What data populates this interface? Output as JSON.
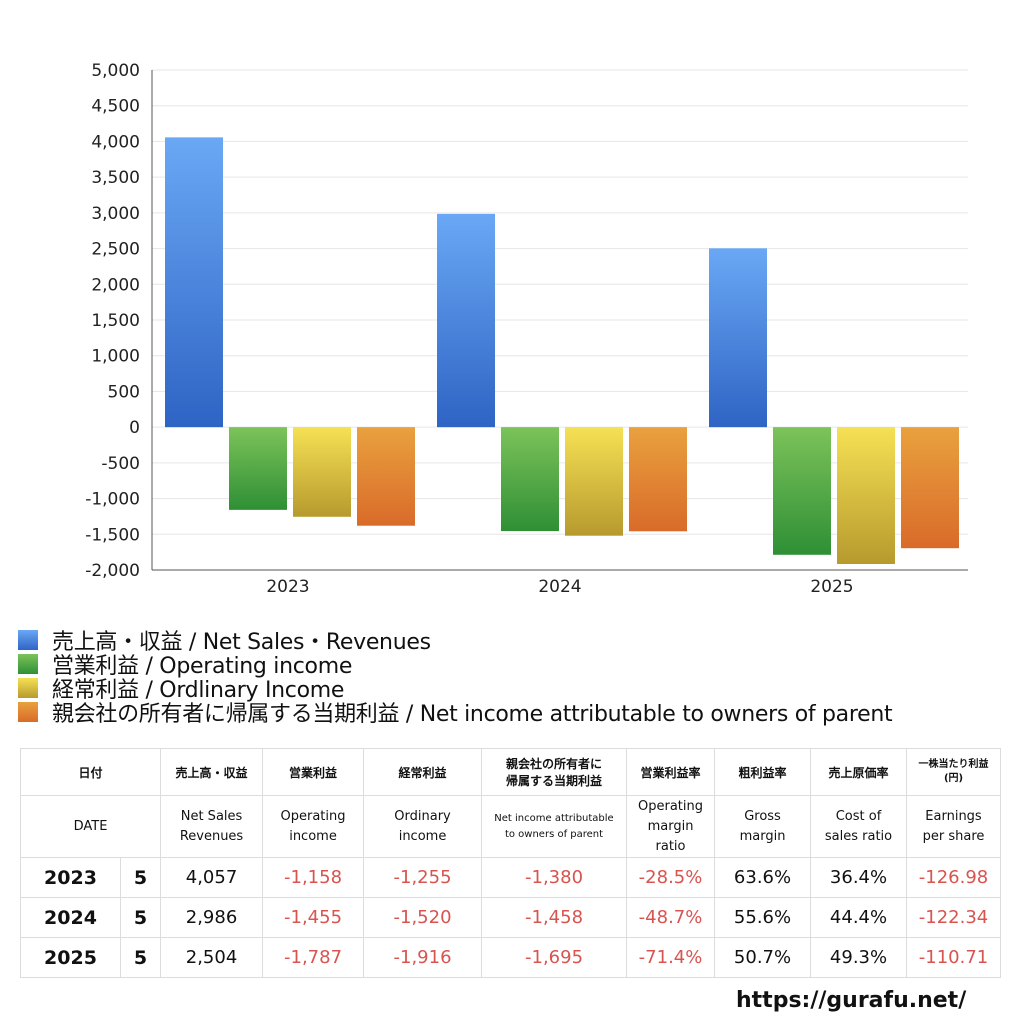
{
  "chart_data": {
    "type": "bar",
    "categories": [
      "2023",
      "2024",
      "2025"
    ],
    "ylim": [
      -2000,
      5000
    ],
    "yticks": [
      "5,000",
      "4,500",
      "4,000",
      "3,500",
      "3,000",
      "2,500",
      "2,000",
      "1,500",
      "1,000",
      "500",
      "0",
      "-500",
      "-1,000",
      "-1,500",
      "-2,000"
    ],
    "ytick_values": [
      5000,
      4500,
      4000,
      3500,
      3000,
      2500,
      2000,
      1500,
      1000,
      500,
      0,
      -500,
      -1000,
      -1500,
      -2000
    ],
    "grid": true,
    "legend_position": "bottom-left",
    "series": [
      {
        "name": "売上高・収益 / Net Sales・Revenues",
        "values": [
          4057,
          2986,
          2504
        ],
        "color_top": "#6aa8f5",
        "color_bottom": "#2e64c4"
      },
      {
        "name": "営業利益 / Operating income",
        "values": [
          -1158,
          -1455,
          -1787
        ],
        "color_top": "#7cc35a",
        "color_bottom": "#2f8f35"
      },
      {
        "name": "経常利益 / Ordlinary Income",
        "values": [
          -1255,
          -1520,
          -1916
        ],
        "color_top": "#f5e154",
        "color_bottom": "#b79a2e"
      },
      {
        "name": "親会社の所有者に帰属する当期利益 / Net income attributable to owners of parent",
        "values": [
          -1380,
          -1458,
          -1695
        ],
        "color_top": "#e9a13e",
        "color_bottom": "#d96b2a"
      }
    ]
  },
  "table": {
    "header_ja": {
      "date": "日付",
      "net_sales": "売上高・収益",
      "operating_income": "営業利益",
      "ordinary_income": "経常利益",
      "net_income_1": "親会社の所有者に",
      "net_income_2": "帰属する当期利益",
      "operating_margin": "営業利益率",
      "gross_margin": "粗利益率",
      "cost_ratio": "売上原価率",
      "eps_1": "一株当たり利益",
      "eps_2": "(円)"
    },
    "header_en": {
      "date": "DATE",
      "net_sales_1": "Net Sales",
      "net_sales_2": "Revenues",
      "operating_income_1": "Operating",
      "operating_income_2": "income",
      "ordinary_income_1": "Ordinary",
      "ordinary_income_2": "income",
      "net_income_1": "Net income attributable",
      "net_income_2": "to owners of parent",
      "operating_margin_1": "Operating",
      "operating_margin_2": "margin",
      "operating_margin_3": "ratio",
      "gross_margin_1": "Gross",
      "gross_margin_2": "margin",
      "cost_ratio_1": "Cost of",
      "cost_ratio_2": "sales ratio",
      "eps_1": "Earnings",
      "eps_2": "per share"
    },
    "rows": [
      {
        "year": "2023",
        "month": "5",
        "net_sales": "4,057",
        "operating_income": "-1,158",
        "ordinary_income": "-1,255",
        "net_income": "-1,380",
        "operating_margin": "-28.5%",
        "gross_margin": "63.6%",
        "cost_ratio": "36.4%",
        "eps": "-126.98"
      },
      {
        "year": "2024",
        "month": "5",
        "net_sales": "2,986",
        "operating_income": "-1,455",
        "ordinary_income": "-1,520",
        "net_income": "-1,458",
        "operating_margin": "-48.7%",
        "gross_margin": "55.6%",
        "cost_ratio": "44.4%",
        "eps": "-122.34"
      },
      {
        "year": "2025",
        "month": "5",
        "net_sales": "2,504",
        "operating_income": "-1,787",
        "ordinary_income": "-1,916",
        "net_income": "-1,695",
        "operating_margin": "-71.4%",
        "gross_margin": "50.7%",
        "cost_ratio": "49.3%",
        "eps": "-110.71"
      }
    ]
  },
  "source_url": "https://gurafu.net/"
}
